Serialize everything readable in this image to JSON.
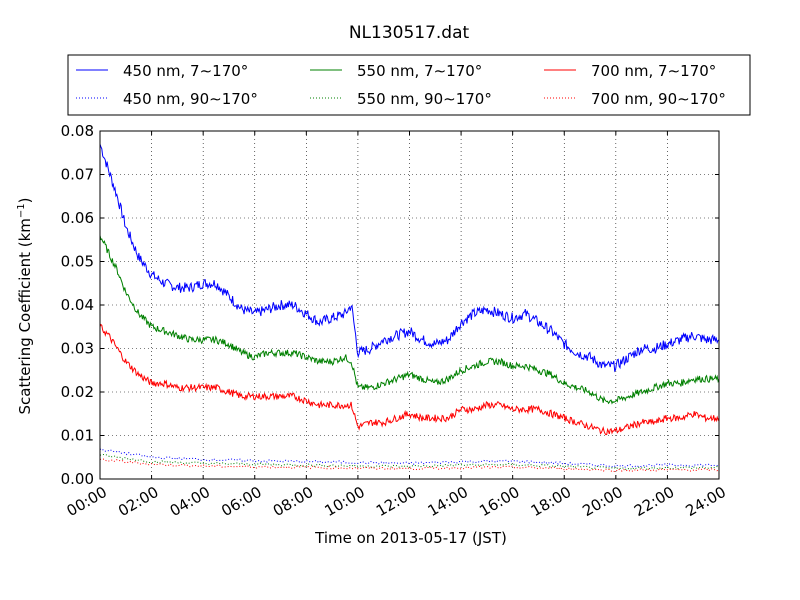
{
  "chart_data": {
    "type": "line",
    "title": "NL130517.dat",
    "xlabel": "Time on 2013-05-17 (JST)",
    "ylabel_main": "Scattering Coefficient (km",
    "ylabel_sup": "−1",
    "ylabel_close": ")",
    "xlim": [
      "2013-05-17 00:00",
      "2013-05-18 00:00"
    ],
    "ylim": [
      0.0,
      0.08
    ],
    "grid": true,
    "legend_position": "top, above plot, 3 columns",
    "x_ticks": [
      "00:00",
      "02:00",
      "04:00",
      "06:00",
      "08:00",
      "10:00",
      "12:00",
      "14:00",
      "16:00",
      "18:00",
      "20:00",
      "22:00",
      "24:00"
    ],
    "y_ticks": [
      "0.00",
      "0.01",
      "0.02",
      "0.03",
      "0.04",
      "0.05",
      "0.06",
      "0.07",
      "0.08"
    ],
    "series": [
      {
        "name": "450 nm, 7∼170°",
        "color": "#0000ff",
        "style": "solid",
        "x": [
          "2013-05-17 00:00",
          "2013-05-17 00:20",
          "2013-05-17 00:40",
          "2013-05-17 01:00",
          "2013-05-17 01:30",
          "2013-05-17 02:00",
          "2013-05-17 02:30",
          "2013-05-17 03:00",
          "2013-05-17 03:30",
          "2013-05-17 04:00",
          "2013-05-17 04:30",
          "2013-05-17 05:00",
          "2013-05-17 05:30",
          "2013-05-17 06:00",
          "2013-05-17 06:30",
          "2013-05-17 07:00",
          "2013-05-17 07:30",
          "2013-05-17 08:00",
          "2013-05-17 08:30",
          "2013-05-17 09:00",
          "2013-05-17 09:30",
          "2013-05-17 09:45",
          "2013-05-17 10:00",
          "2013-05-17 10:30",
          "2013-05-17 11:00",
          "2013-05-17 11:30",
          "2013-05-17 12:00",
          "2013-05-17 12:30",
          "2013-05-17 13:00",
          "2013-05-17 13:30",
          "2013-05-17 14:00",
          "2013-05-17 14:30",
          "2013-05-17 15:00",
          "2013-05-17 15:30",
          "2013-05-17 16:00",
          "2013-05-17 16:30",
          "2013-05-17 17:00",
          "2013-05-17 17:30",
          "2013-05-17 18:00",
          "2013-05-17 18:30",
          "2013-05-17 19:00",
          "2013-05-17 19:30",
          "2013-05-17 20:00",
          "2013-05-17 20:30",
          "2013-05-17 21:00",
          "2013-05-17 21:30",
          "2013-05-17 22:00",
          "2013-05-17 22:30",
          "2013-05-17 23:00",
          "2013-05-17 23:30",
          "2013-05-18 00:00"
        ],
        "y": [
          0.077,
          0.071,
          0.065,
          0.058,
          0.051,
          0.047,
          0.045,
          0.044,
          0.044,
          0.045,
          0.045,
          0.042,
          0.039,
          0.038,
          0.039,
          0.04,
          0.04,
          0.038,
          0.036,
          0.037,
          0.038,
          0.04,
          0.029,
          0.03,
          0.032,
          0.033,
          0.034,
          0.032,
          0.031,
          0.032,
          0.036,
          0.038,
          0.039,
          0.038,
          0.037,
          0.038,
          0.036,
          0.034,
          0.031,
          0.029,
          0.028,
          0.026,
          0.026,
          0.028,
          0.03,
          0.03,
          0.031,
          0.032,
          0.033,
          0.032,
          0.032
        ]
      },
      {
        "name": "550 nm, 7∼170°",
        "color": "#008000",
        "style": "solid",
        "x": [
          "2013-05-17 00:00",
          "2013-05-17 00:20",
          "2013-05-17 00:40",
          "2013-05-17 01:00",
          "2013-05-17 01:30",
          "2013-05-17 02:00",
          "2013-05-17 02:30",
          "2013-05-17 03:00",
          "2013-05-17 03:30",
          "2013-05-17 04:00",
          "2013-05-17 04:30",
          "2013-05-17 05:00",
          "2013-05-17 05:30",
          "2013-05-17 06:00",
          "2013-05-17 06:30",
          "2013-05-17 07:00",
          "2013-05-17 07:30",
          "2013-05-17 08:00",
          "2013-05-17 08:30",
          "2013-05-17 09:00",
          "2013-05-17 09:30",
          "2013-05-17 09:45",
          "2013-05-17 10:00",
          "2013-05-17 10:30",
          "2013-05-17 11:00",
          "2013-05-17 11:30",
          "2013-05-17 12:00",
          "2013-05-17 12:30",
          "2013-05-17 13:00",
          "2013-05-17 13:30",
          "2013-05-17 14:00",
          "2013-05-17 14:30",
          "2013-05-17 15:00",
          "2013-05-17 15:30",
          "2013-05-17 16:00",
          "2013-05-17 16:30",
          "2013-05-17 17:00",
          "2013-05-17 17:30",
          "2013-05-17 18:00",
          "2013-05-17 18:30",
          "2013-05-17 19:00",
          "2013-05-17 19:30",
          "2013-05-17 20:00",
          "2013-05-17 20:30",
          "2013-05-17 21:00",
          "2013-05-17 21:30",
          "2013-05-17 22:00",
          "2013-05-17 22:30",
          "2013-05-17 23:00",
          "2013-05-17 23:30",
          "2013-05-18 00:00"
        ],
        "y": [
          0.056,
          0.052,
          0.048,
          0.043,
          0.038,
          0.035,
          0.034,
          0.033,
          0.032,
          0.032,
          0.032,
          0.031,
          0.029,
          0.028,
          0.029,
          0.029,
          0.029,
          0.028,
          0.027,
          0.027,
          0.028,
          0.027,
          0.021,
          0.021,
          0.022,
          0.023,
          0.024,
          0.023,
          0.022,
          0.023,
          0.025,
          0.026,
          0.027,
          0.027,
          0.026,
          0.026,
          0.025,
          0.024,
          0.022,
          0.021,
          0.02,
          0.018,
          0.018,
          0.019,
          0.02,
          0.021,
          0.022,
          0.022,
          0.023,
          0.023,
          0.023
        ]
      },
      {
        "name": "700 nm, 7∼170°",
        "color": "#ff0000",
        "style": "solid",
        "x": [
          "2013-05-17 00:00",
          "2013-05-17 00:20",
          "2013-05-17 00:40",
          "2013-05-17 01:00",
          "2013-05-17 01:30",
          "2013-05-17 02:00",
          "2013-05-17 02:30",
          "2013-05-17 03:00",
          "2013-05-17 03:30",
          "2013-05-17 04:00",
          "2013-05-17 04:30",
          "2013-05-17 05:00",
          "2013-05-17 05:30",
          "2013-05-17 06:00",
          "2013-05-17 06:30",
          "2013-05-17 07:00",
          "2013-05-17 07:30",
          "2013-05-17 08:00",
          "2013-05-17 08:30",
          "2013-05-17 09:00",
          "2013-05-17 09:30",
          "2013-05-17 09:45",
          "2013-05-17 10:00",
          "2013-05-17 10:30",
          "2013-05-17 11:00",
          "2013-05-17 11:30",
          "2013-05-17 12:00",
          "2013-05-17 12:30",
          "2013-05-17 13:00",
          "2013-05-17 13:30",
          "2013-05-17 14:00",
          "2013-05-17 14:30",
          "2013-05-17 15:00",
          "2013-05-17 15:30",
          "2013-05-17 16:00",
          "2013-05-17 16:30",
          "2013-05-17 17:00",
          "2013-05-17 17:30",
          "2013-05-17 18:00",
          "2013-05-17 18:30",
          "2013-05-17 19:00",
          "2013-05-17 19:30",
          "2013-05-17 20:00",
          "2013-05-17 20:30",
          "2013-05-17 21:00",
          "2013-05-17 21:30",
          "2013-05-17 22:00",
          "2013-05-17 22:30",
          "2013-05-17 23:00",
          "2013-05-17 23:30",
          "2013-05-18 00:00"
        ],
        "y": [
          0.035,
          0.033,
          0.03,
          0.027,
          0.024,
          0.022,
          0.022,
          0.021,
          0.021,
          0.021,
          0.021,
          0.02,
          0.019,
          0.019,
          0.019,
          0.019,
          0.019,
          0.018,
          0.017,
          0.017,
          0.017,
          0.017,
          0.012,
          0.013,
          0.013,
          0.014,
          0.015,
          0.014,
          0.014,
          0.014,
          0.016,
          0.016,
          0.017,
          0.017,
          0.016,
          0.016,
          0.016,
          0.015,
          0.014,
          0.013,
          0.012,
          0.011,
          0.011,
          0.012,
          0.013,
          0.013,
          0.014,
          0.014,
          0.015,
          0.014,
          0.014
        ]
      },
      {
        "name": "450 nm, 90∼170°",
        "color": "#0000ff",
        "style": "dotted",
        "x": [
          "2013-05-17 00:00",
          "2013-05-17 02:00",
          "2013-05-17 04:00",
          "2013-05-17 06:00",
          "2013-05-17 08:00",
          "2013-05-17 10:00",
          "2013-05-17 12:00",
          "2013-05-17 14:00",
          "2013-05-17 16:00",
          "2013-05-17 18:00",
          "2013-05-17 20:00",
          "2013-05-17 22:00",
          "2013-05-18 00:00"
        ],
        "y": [
          0.0068,
          0.005,
          0.0045,
          0.0042,
          0.004,
          0.0038,
          0.0036,
          0.004,
          0.0041,
          0.0036,
          0.003,
          0.0032,
          0.0032
        ]
      },
      {
        "name": "550 nm, 90∼170°",
        "color": "#008000",
        "style": "dotted",
        "x": [
          "2013-05-17 00:00",
          "2013-05-17 02:00",
          "2013-05-17 04:00",
          "2013-05-17 06:00",
          "2013-05-17 08:00",
          "2013-05-17 10:00",
          "2013-05-17 12:00",
          "2013-05-17 14:00",
          "2013-05-17 16:00",
          "2013-05-17 18:00",
          "2013-05-17 20:00",
          "2013-05-17 22:00",
          "2013-05-18 00:00"
        ],
        "y": [
          0.0055,
          0.004,
          0.0036,
          0.0034,
          0.0032,
          0.003,
          0.0029,
          0.0032,
          0.0033,
          0.0029,
          0.0024,
          0.0026,
          0.0026
        ]
      },
      {
        "name": "700 nm, 90∼170°",
        "color": "#ff0000",
        "style": "dotted",
        "x": [
          "2013-05-17 00:00",
          "2013-05-17 02:00",
          "2013-05-17 04:00",
          "2013-05-17 06:00",
          "2013-05-17 08:00",
          "2013-05-17 10:00",
          "2013-05-17 12:00",
          "2013-05-17 14:00",
          "2013-05-17 16:00",
          "2013-05-17 18:00",
          "2013-05-17 20:00",
          "2013-05-17 22:00",
          "2013-05-18 00:00"
        ],
        "y": [
          0.0045,
          0.0034,
          0.003,
          0.0028,
          0.0027,
          0.0025,
          0.0024,
          0.0026,
          0.0027,
          0.0024,
          0.002,
          0.0021,
          0.0021
        ]
      }
    ]
  }
}
